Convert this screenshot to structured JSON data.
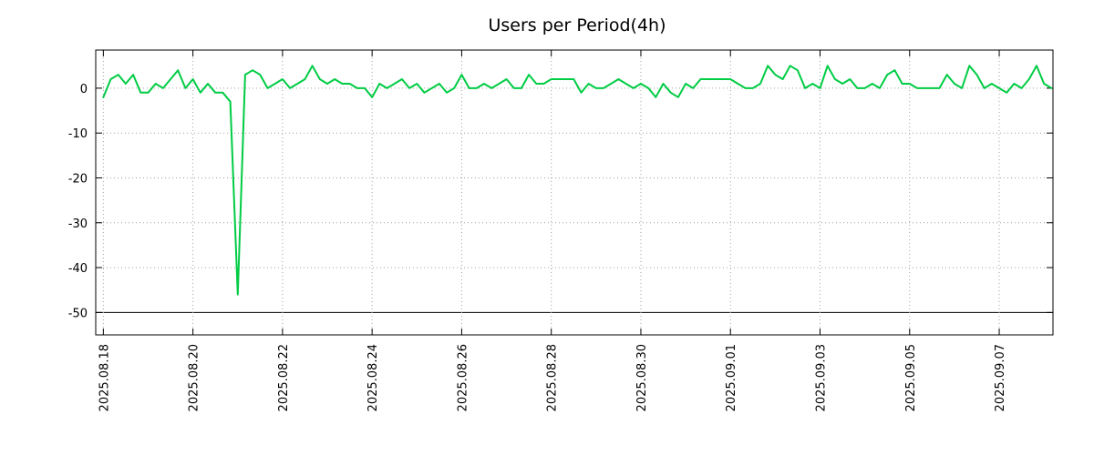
{
  "chart_data": {
    "type": "line",
    "title": "Users per Period(4h)",
    "series_name": "users",
    "series_color": "#00cc44",
    "grid_color": "#a0a0a0",
    "border_color": "#000000",
    "grid": true,
    "legend": "none",
    "x_start": "2025-08-18",
    "interval_hours": 4,
    "x_ticks": [
      "2025.08.18",
      "2025.08.20",
      "2025.08.22",
      "2025.08.24",
      "2025.08.26",
      "2025.08.28",
      "2025.08.30",
      "2025.09.01",
      "2025.09.03",
      "2025.09.05",
      "2025.09.07"
    ],
    "y_ticks": [
      0,
      -10,
      -20,
      -30,
      -40,
      -50
    ],
    "y_solid_line": -50,
    "ylim": [
      -55,
      8.5
    ],
    "x_range_days": [
      -0.17,
      21.2
    ],
    "xlabel": "",
    "ylabel": "",
    "values": [
      -2,
      2,
      3,
      1,
      3,
      -1,
      -1,
      1,
      0,
      2,
      4,
      0,
      2,
      -1,
      1,
      -1,
      -1,
      -3,
      -46,
      3,
      4,
      3,
      0,
      1,
      2,
      0,
      1,
      2,
      5,
      2,
      1,
      2,
      1,
      1,
      0,
      0,
      -2,
      1,
      0,
      1,
      2,
      0,
      1,
      -1,
      0,
      1,
      -1,
      0,
      3,
      0,
      0,
      1,
      0,
      1,
      2,
      0,
      0,
      3,
      1,
      1,
      2,
      2,
      2,
      2,
      -1,
      1,
      0,
      0,
      1,
      2,
      1,
      0,
      1,
      0,
      -2,
      1,
      -1,
      -2,
      1,
      0,
      2,
      2,
      2,
      2,
      2,
      1,
      0,
      0,
      1,
      5,
      3,
      2,
      5,
      4,
      0,
      1,
      0,
      5,
      2,
      1,
      2,
      0,
      0,
      1,
      0,
      3,
      4,
      1,
      1,
      0,
      0,
      0,
      0,
      3,
      1,
      0,
      5,
      3,
      0,
      1,
      0,
      -1,
      1,
      0,
      2,
      5,
      1,
      0
    ]
  }
}
